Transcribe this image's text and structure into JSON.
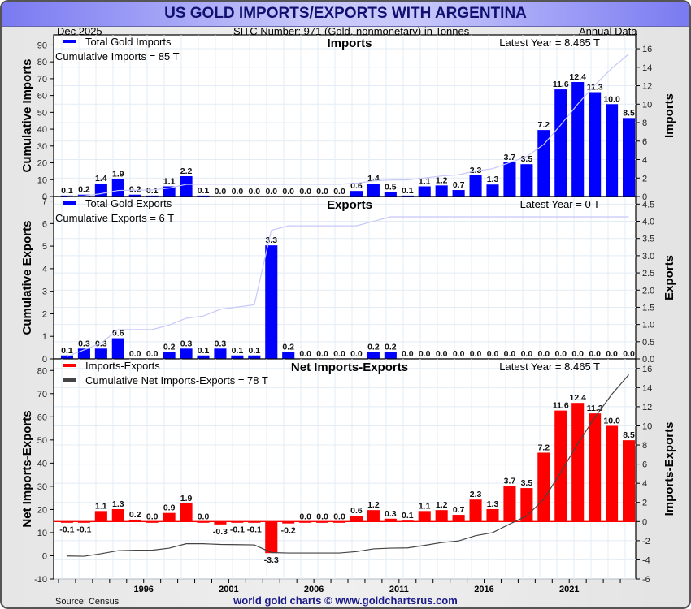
{
  "header": {
    "title": "US GOLD IMPORTS/EXPORTS WITH ARGENTINA",
    "date": "Dec  2025",
    "sitc": "SITC Number: 971 (Gold, nonmonetary) in Tonnes",
    "frequency": "Annual Data"
  },
  "footer": {
    "source": "Source: Census",
    "credit": "world gold charts © www.goldchartsrus.com"
  },
  "colors": {
    "imports": "#0000ff",
    "exports": "#0000ff",
    "net": "#ff0000",
    "cum_light": "#c8c8f8",
    "cum_net": "#444444"
  },
  "chart_data": [
    {
      "type": "bar",
      "title": "Imports",
      "legend": "Total Gold Imports",
      "cumulative_label": "Cumulative Imports = 85 T",
      "latest_label": "Latest Year = 8.465 T",
      "ylabel_left": "Cumulative Imports",
      "ylabel_right": "Imports",
      "ylim_left": [
        0,
        96
      ],
      "ylim_right": [
        0,
        17.5
      ],
      "yticks_left": [
        0,
        10,
        20,
        30,
        40,
        50,
        60,
        70,
        80,
        90
      ],
      "yticks_right": [
        0,
        2,
        4,
        6,
        8,
        10,
        12,
        14,
        16
      ],
      "x": [
        1991,
        1992,
        1993,
        1994,
        1995,
        1996,
        1997,
        1998,
        1999,
        2000,
        2001,
        2002,
        2003,
        2004,
        2005,
        2006,
        2007,
        2008,
        2009,
        2010,
        2011,
        2012,
        2013,
        2014,
        2015,
        2016,
        2017,
        2018,
        2019,
        2020,
        2021,
        2022,
        2023,
        2024
      ],
      "values": [
        0.1,
        0.2,
        1.4,
        1.9,
        0.2,
        0.1,
        1.1,
        2.2,
        0.1,
        0.0,
        0.0,
        0.0,
        0.0,
        0.0,
        0.0,
        0.0,
        0.0,
        0.6,
        1.4,
        0.5,
        0.1,
        1.1,
        1.2,
        0.7,
        2.3,
        1.3,
        3.7,
        3.5,
        7.2,
        11.6,
        12.4,
        11.3,
        10.0,
        8.5
      ],
      "value_labels": [
        "0.1",
        "0.2",
        "1.4",
        "1.9",
        "0.2",
        "0.1",
        "1.1",
        "2.2",
        "0.1",
        "0.0",
        "0.0",
        "0.0",
        "0.0",
        "0.0",
        "0.0",
        "0.0",
        "0.0",
        "0.6",
        "1.4",
        "0.5",
        "0.1",
        "1.1",
        "1.2",
        "0.7",
        "2.3",
        "1.3",
        "3.7",
        "3.5",
        "7.2",
        "11.6",
        "12.4",
        "11.3",
        "10.0",
        "8.5"
      ]
    },
    {
      "type": "bar",
      "title": "Exports",
      "legend": "Total Gold Exports",
      "cumulative_label": "Cumulative Exports = 6 T",
      "latest_label": "Latest Year = 0 T",
      "ylabel_left": "Cumulative Exports",
      "ylabel_right": "Exports",
      "ylim_left": [
        0,
        7.2
      ],
      "ylim_right": [
        0,
        4.72
      ],
      "yticks_left": [
        0,
        1,
        2,
        3,
        4,
        5,
        6,
        7
      ],
      "yticks_right": [
        "0.0",
        "0.5",
        "1.0",
        "1.5",
        "2.0",
        "2.5",
        "3.0",
        "3.5",
        "4.0",
        "4.5"
      ],
      "x": [
        1991,
        1992,
        1993,
        1994,
        1995,
        1996,
        1997,
        1998,
        1999,
        2000,
        2001,
        2002,
        2003,
        2004,
        2005,
        2006,
        2007,
        2008,
        2009,
        2010,
        2011,
        2012,
        2013,
        2014,
        2015,
        2016,
        2017,
        2018,
        2019,
        2020,
        2021,
        2022,
        2023,
        2024
      ],
      "values": [
        0.1,
        0.3,
        0.3,
        0.6,
        0.0,
        0.0,
        0.2,
        0.3,
        0.1,
        0.3,
        0.1,
        0.1,
        3.3,
        0.2,
        0.0,
        0.0,
        0.0,
        0.0,
        0.2,
        0.2,
        0.0,
        0.0,
        0.0,
        0.0,
        0.0,
        0.0,
        0.0,
        0.0,
        0.0,
        0.0,
        0.0,
        0.0,
        0.0,
        0.0
      ],
      "value_labels": [
        "0.1",
        "0.3",
        "0.3",
        "0.6",
        "0.0",
        "0.0",
        "0.2",
        "0.3",
        "0.1",
        "0.3",
        "0.1",
        "0.1",
        "3.3",
        "0.2",
        "0.0",
        "0.0",
        "0.0",
        "0.0",
        "0.2",
        "0.2",
        "0.0",
        "0.0",
        "0.0",
        "0.0",
        "0.0",
        "0.0",
        "0.0",
        "0.0",
        "0.0",
        "0.0",
        "0.0",
        "0.0",
        "0.0",
        "0.0"
      ]
    },
    {
      "type": "bar",
      "title": "Net Imports-Exports",
      "legend": "Imports-Exports",
      "legend_cumulative": "Cumulative Net Imports-Exports = 78 T",
      "latest_label": "Latest Year = 8.465 T",
      "ylabel_left": "Net Imports-Exports",
      "ylabel_right": "Imports-Exports",
      "ylim_left": [
        -10,
        85
      ],
      "ylim_right": [
        -6,
        17
      ],
      "yticks_left": [
        -10,
        0,
        10,
        20,
        30,
        40,
        50,
        60,
        70,
        80
      ],
      "yticks_right": [
        -6,
        -4,
        -2,
        0,
        2,
        4,
        6,
        8,
        10,
        12,
        14,
        16
      ],
      "xticks": [
        "1996",
        "2001",
        "2006",
        "2011",
        "2016",
        "2021"
      ],
      "x": [
        1991,
        1992,
        1993,
        1994,
        1995,
        1996,
        1997,
        1998,
        1999,
        2000,
        2001,
        2002,
        2003,
        2004,
        2005,
        2006,
        2007,
        2008,
        2009,
        2010,
        2011,
        2012,
        2013,
        2014,
        2015,
        2016,
        2017,
        2018,
        2019,
        2020,
        2021,
        2022,
        2023,
        2024
      ],
      "values": [
        -0.1,
        -0.1,
        1.1,
        1.3,
        0.2,
        0.0,
        0.9,
        1.9,
        0.0,
        -0.3,
        -0.1,
        -0.1,
        -3.3,
        -0.2,
        0.0,
        0.0,
        0.0,
        0.6,
        1.2,
        0.3,
        0.1,
        1.1,
        1.2,
        0.7,
        2.3,
        1.3,
        3.7,
        3.5,
        7.2,
        11.6,
        12.4,
        11.3,
        10.0,
        8.5
      ],
      "value_labels": [
        "-0.1",
        "-0.1",
        "1.1",
        "1.3",
        "0.2",
        "0.0",
        "0.9",
        "1.9",
        "0.0",
        "-0.3",
        "-0.1",
        "-0.1",
        "-3.3",
        "-0.2",
        "0.0",
        "0.0",
        "0.0",
        "0.6",
        "1.2",
        "0.3",
        "0.1",
        "1.1",
        "1.2",
        "0.7",
        "2.3",
        "1.3",
        "3.7",
        "3.5",
        "7.2",
        "11.6",
        "12.4",
        "11.3",
        "10.0",
        "8.5"
      ]
    }
  ]
}
